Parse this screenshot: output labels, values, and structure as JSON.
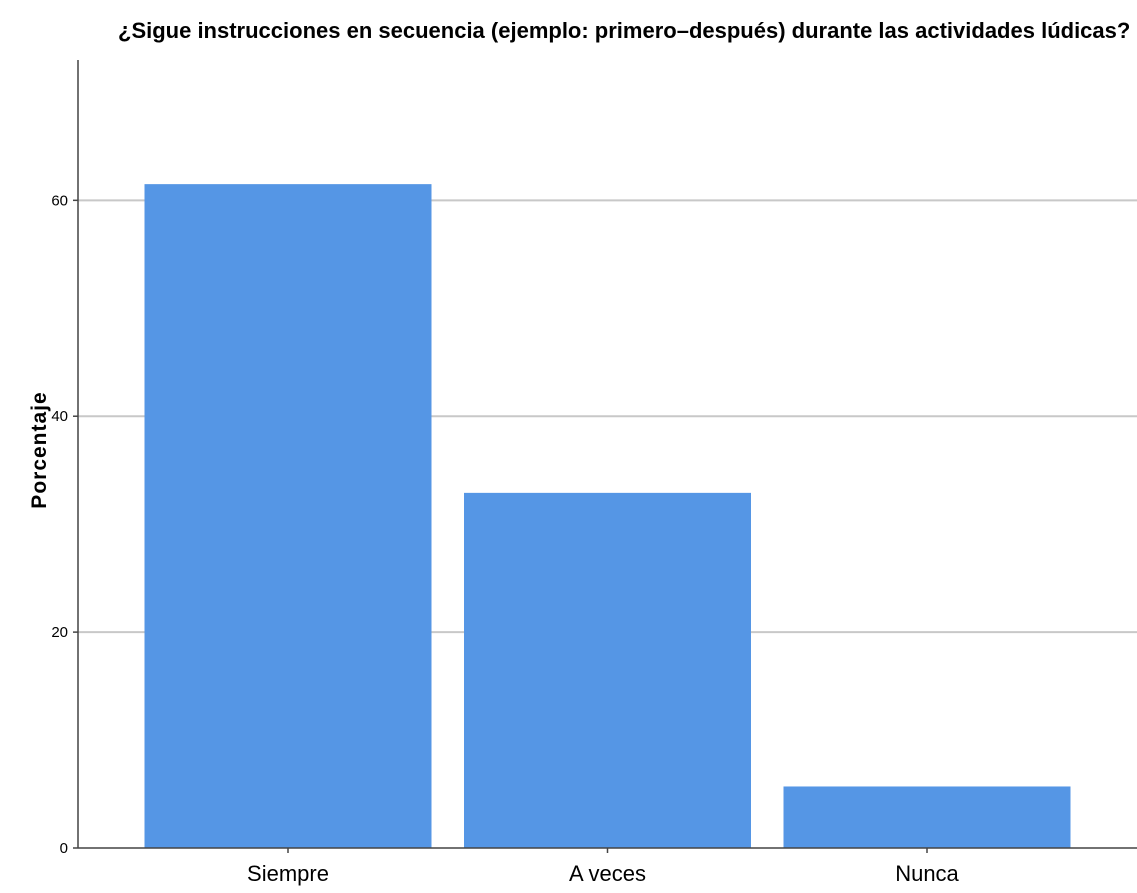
{
  "chart_data": {
    "type": "bar",
    "title": "¿Sigue instrucciones en secuencia (ejemplo: primero–después) durante las actividades lúdicas?",
    "xlabel": "",
    "ylabel": "Porcentaje",
    "categories": [
      "Siempre",
      "A veces",
      "Nunca"
    ],
    "values": [
      61.5,
      32.9,
      5.7
    ],
    "ylim": [
      0,
      73
    ],
    "yticks": [
      0,
      20,
      40,
      60
    ],
    "ytick_labels": [
      "0",
      "20",
      "40",
      "60"
    ],
    "grid": true,
    "bar_color": "#5596e5",
    "legend": "none"
  }
}
